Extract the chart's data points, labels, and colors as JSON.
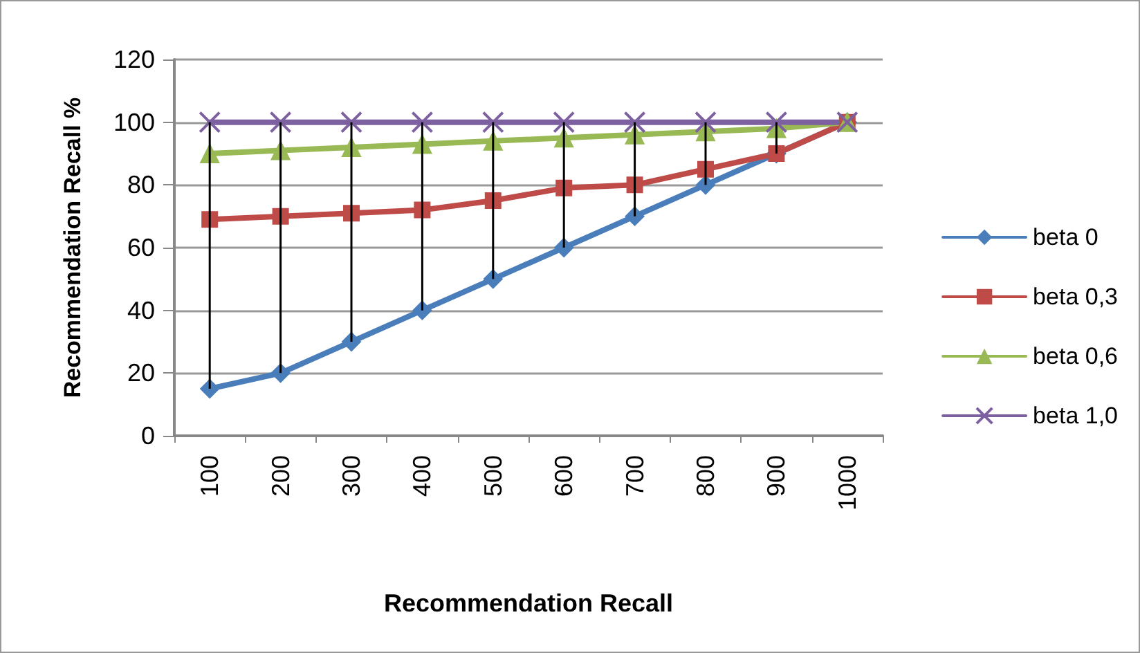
{
  "chart_data": {
    "type": "line",
    "xlabel": "Recommendation Recall",
    "ylabel": "Recommendation Recall %",
    "categories": [
      "100",
      "200",
      "300",
      "400",
      "500",
      "600",
      "700",
      "800",
      "900",
      "1000"
    ],
    "series": [
      {
        "name": "beta 0",
        "color": "#4a7ebb",
        "marker": "diamond",
        "values": [
          15,
          20,
          30,
          40,
          50,
          60,
          70,
          80,
          90,
          100
        ],
        "errors": [
          [
            15,
            100
          ],
          [
            20,
            100
          ],
          [
            30,
            100
          ],
          [
            40,
            100
          ],
          [
            50,
            100
          ],
          [
            60,
            100
          ],
          [
            70,
            100
          ],
          [
            80,
            100
          ],
          [
            90,
            100
          ],
          null
        ]
      },
      {
        "name": "beta 0,3",
        "color": "#be4b48",
        "marker": "square",
        "values": [
          69,
          70,
          71,
          72,
          75,
          79,
          80,
          85,
          90,
          100
        ]
      },
      {
        "name": "beta 0,6",
        "color": "#98b954",
        "marker": "triangle",
        "values": [
          90,
          91,
          92,
          93,
          94,
          95,
          96,
          97,
          98,
          100
        ]
      },
      {
        "name": "beta 1,0",
        "color": "#7d60a0",
        "marker": "cross",
        "values": [
          100,
          100,
          100,
          100,
          100,
          100,
          100,
          100,
          100,
          100
        ]
      }
    ],
    "ylim": [
      0,
      120
    ],
    "yticks": [
      0,
      20,
      40,
      60,
      80,
      100,
      120
    ],
    "grid": "y",
    "legend": "right"
  }
}
